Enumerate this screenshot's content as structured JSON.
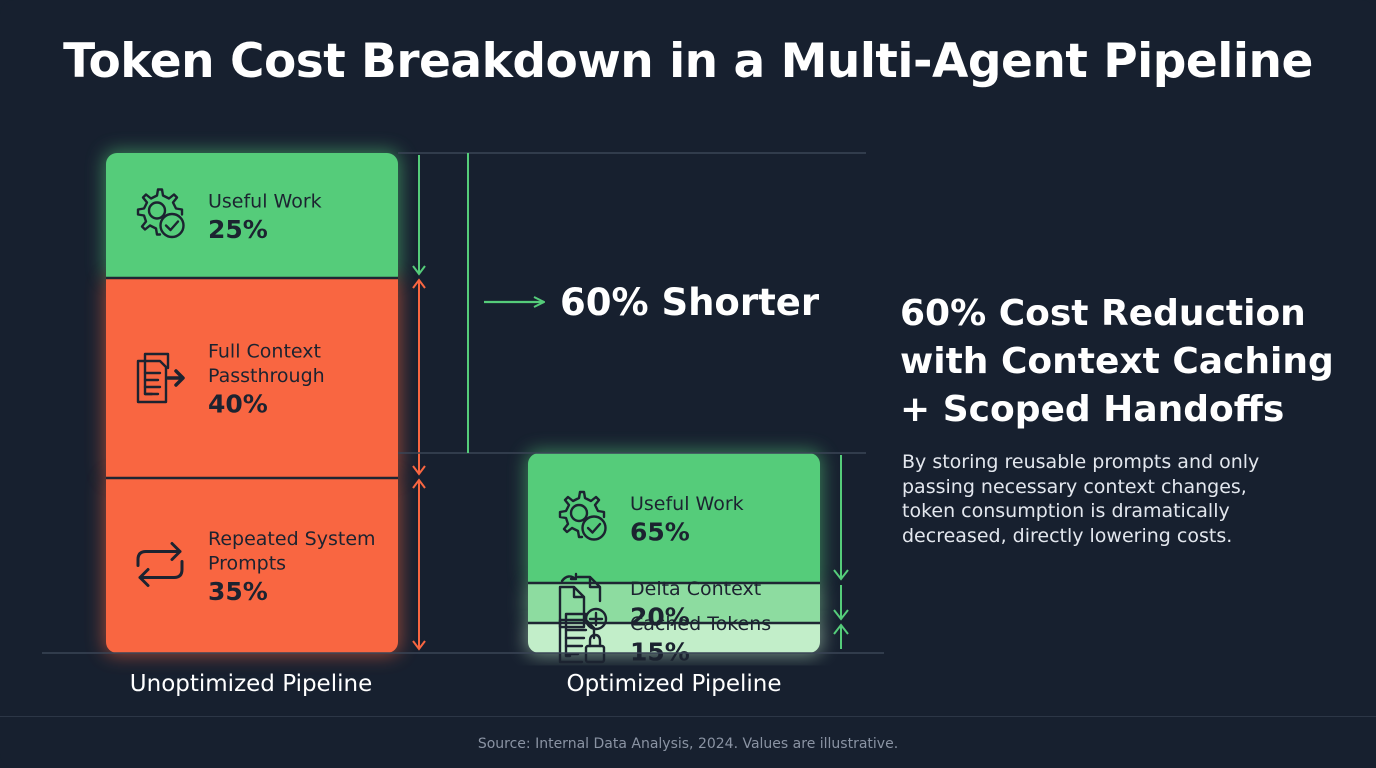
{
  "title": "Token Cost Breakdown in a Multi-Agent Pipeline",
  "headline": {
    "lines": [
      "60% Cost Reduction",
      "with Context Caching",
      "+ Scoped Handoffs"
    ]
  },
  "body": {
    "lines": [
      "By storing reusable prompts and only",
      "passing necessary context changes,",
      "token consumption is dramatically",
      "decreased, directly lowering costs."
    ]
  },
  "footer": "Source: Internal Data Analysis, 2024. Values are illustrative.",
  "colors": {
    "background": "#17202f",
    "green": "#55cc7a",
    "green_mid": "#8ddca0",
    "green_light": "#c2eec9",
    "orange": "#f96641",
    "text_dark": "#1c2330"
  },
  "chart_data": {
    "type": "bar",
    "stacked": true,
    "categories": [
      "Unoptimized Pipeline",
      "Optimized Pipeline"
    ],
    "relative_total": [
      1.0,
      0.4
    ],
    "comparison_label": "60% Shorter",
    "bars": [
      {
        "category": "Unoptimized Pipeline",
        "segments": [
          {
            "label": "Useful Work",
            "value": 25,
            "value_label": "25%",
            "icon": "gear-check-icon",
            "color": "#55cc7a"
          },
          {
            "label": "Full Context Passthrough",
            "value": 40,
            "value_label": "40%",
            "icon": "document-forward-icon",
            "color": "#f96641"
          },
          {
            "label": "Repeated System Prompts",
            "value": 35,
            "value_label": "35%",
            "icon": "repeat-arrows-icon",
            "color": "#f96641"
          }
        ]
      },
      {
        "category": "Optimized Pipeline",
        "segments": [
          {
            "label": "Useful Work",
            "value": 65,
            "value_label": "65%",
            "icon": "gear-check-icon",
            "color": "#55cc7a"
          },
          {
            "label": "Delta Context",
            "value": 20,
            "value_label": "20%",
            "icon": "document-add-icon",
            "color": "#8ddca0"
          },
          {
            "label": "Cached Tokens",
            "value": 15,
            "value_label": "15%",
            "icon": "document-lock-icon",
            "color": "#c2eec9"
          }
        ]
      }
    ]
  }
}
